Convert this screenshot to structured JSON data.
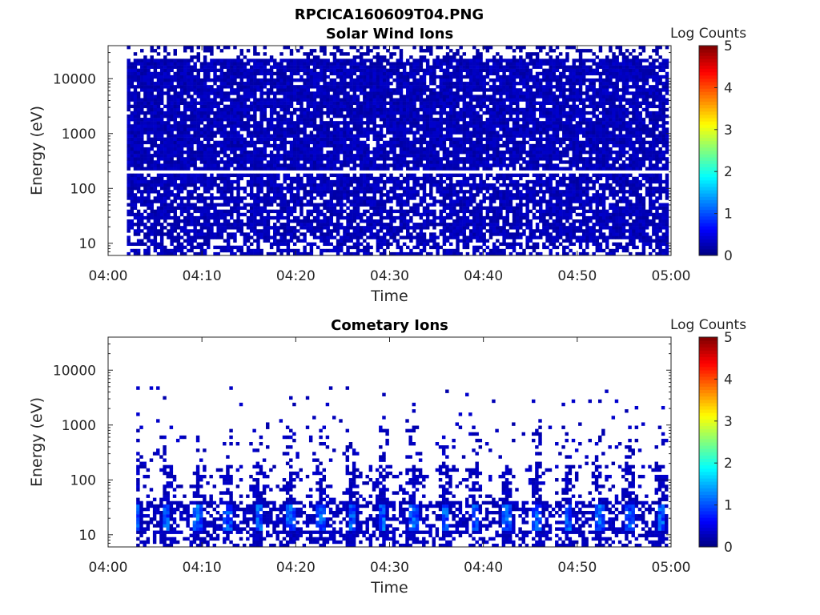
{
  "figure": {
    "title": "RPCICA160609T04.PNG"
  },
  "chart_data": [
    {
      "type": "heatmap",
      "title": "Solar Wind Ions",
      "xlabel": "Time",
      "ylabel": "Energy (eV)",
      "x_range": [
        "04:00",
        "05:00"
      ],
      "x_ticks": [
        "04:00",
        "04:10",
        "04:20",
        "04:30",
        "04:40",
        "04:50",
        "05:00"
      ],
      "y_scale": "log",
      "y_range": [
        6,
        40000
      ],
      "y_ticks": [
        "10",
        "100",
        "1000",
        "10000"
      ],
      "data_start": "04:02",
      "gap_energy_eV": 200,
      "colorbar": {
        "label": "Log Counts",
        "range": [
          0,
          5
        ],
        "ticks": [
          "0",
          "1",
          "2",
          "3",
          "4",
          "5"
        ]
      },
      "description": "Mostly low counts (~0.1-0.3 log) spread densely from ~6 eV to ~20000 eV; no clear solar wind peak."
    },
    {
      "type": "heatmap",
      "title": "Cometary Ions",
      "xlabel": "Time",
      "ylabel": "Energy (eV)",
      "x_range": [
        "04:00",
        "05:00"
      ],
      "x_ticks": [
        "04:00",
        "04:10",
        "04:20",
        "04:30",
        "04:40",
        "04:50",
        "05:00"
      ],
      "y_scale": "log",
      "y_range": [
        6,
        40000
      ],
      "y_ticks": [
        "10",
        "100",
        "1000",
        "10000"
      ],
      "data_start": "04:03",
      "colorbar": {
        "label": "Log Counts",
        "range": [
          0,
          5
        ],
        "ticks": [
          "0",
          "1",
          "2",
          "3",
          "4",
          "5"
        ]
      },
      "description": "Periodic bursts every ~3.3 min peaking at ~20 eV (log counts up to ~1.3), sparse counts up to ~5000 eV."
    }
  ]
}
